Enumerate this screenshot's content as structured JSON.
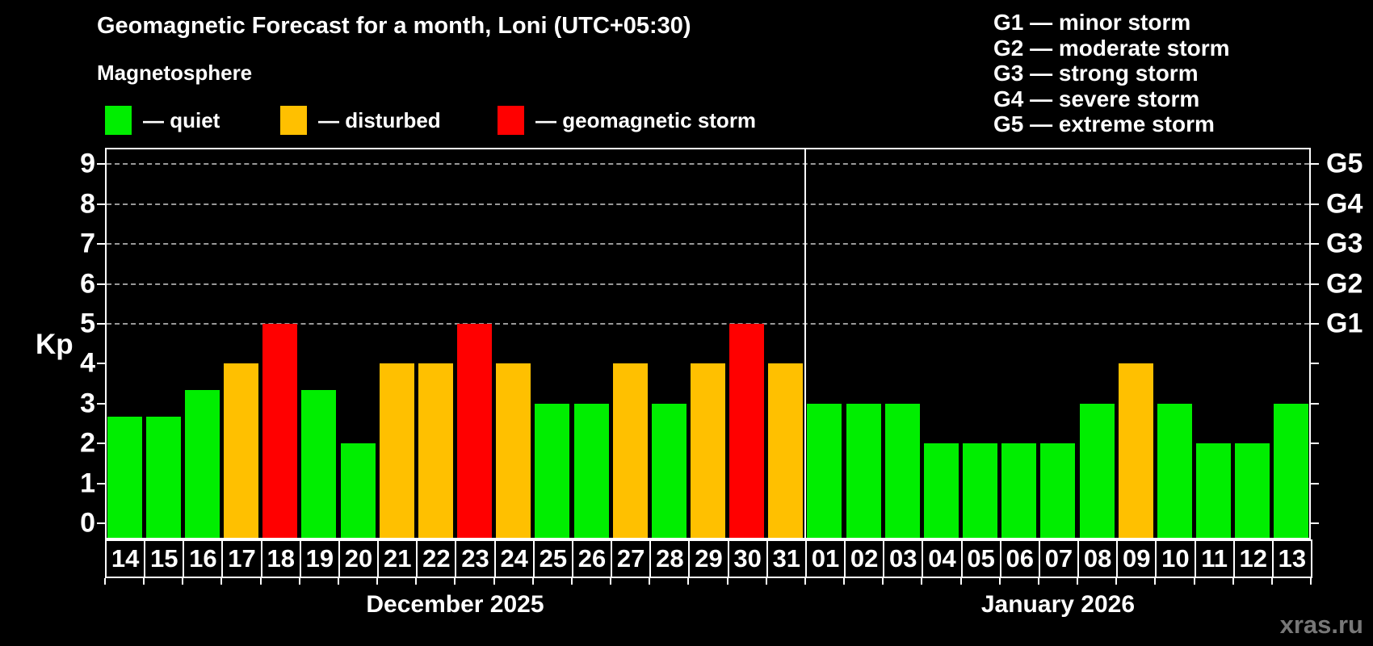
{
  "title": "Geomagnetic Forecast for a month, Loni (UTC+05:30)",
  "subtitle": "Magnetosphere",
  "legend": {
    "items": [
      {
        "name": "quiet",
        "label": "— quiet",
        "color": "#00ee00"
      },
      {
        "name": "disturbed",
        "label": "— disturbed",
        "color": "#ffc000"
      },
      {
        "name": "storm",
        "label": "— geomagnetic storm",
        "color": "#ff0000"
      }
    ]
  },
  "storm_legend": [
    "G1 — minor storm",
    "G2 — moderate storm",
    "G3 — strong storm",
    "G4 — severe storm",
    "G5 — extreme storm"
  ],
  "watermark": "xras.ru",
  "colors": {
    "quiet": "#00ee00",
    "disturbed": "#ffc000",
    "storm": "#ff0000",
    "grid": "#999999",
    "axis": "#ffffff",
    "background": "#000000",
    "watermark": "#777777"
  },
  "chart_data": {
    "type": "bar",
    "title": "Geomagnetic Forecast for a month, Loni (UTC+05:30)",
    "ylabel": "Kp",
    "ylim": [
      0,
      9
    ],
    "y_ticks": [
      0,
      1,
      2,
      3,
      4,
      5,
      6,
      7,
      8,
      9
    ],
    "gridlines": [
      5,
      6,
      7,
      8,
      9
    ],
    "grid": "dashed",
    "legend_position": "top",
    "right_axis_labels": [
      {
        "kp": 5,
        "label": "G1"
      },
      {
        "kp": 6,
        "label": "G2"
      },
      {
        "kp": 7,
        "label": "G3"
      },
      {
        "kp": 8,
        "label": "G4"
      },
      {
        "kp": 9,
        "label": "G5"
      }
    ],
    "categories": [
      "14",
      "15",
      "16",
      "17",
      "18",
      "19",
      "20",
      "21",
      "22",
      "23",
      "24",
      "25",
      "26",
      "27",
      "28",
      "29",
      "30",
      "31",
      "01",
      "02",
      "03",
      "04",
      "05",
      "06",
      "07",
      "08",
      "09",
      "10",
      "11",
      "12",
      "13"
    ],
    "values": [
      2.67,
      2.67,
      3.33,
      4,
      5,
      3.33,
      2,
      4,
      4,
      5,
      4,
      3,
      3,
      4,
      3,
      4,
      5,
      4,
      3,
      3,
      3,
      2,
      2,
      2,
      2,
      3,
      4,
      3,
      2,
      2,
      3
    ],
    "levels": [
      "quiet",
      "quiet",
      "quiet",
      "disturbed",
      "storm",
      "quiet",
      "quiet",
      "disturbed",
      "disturbed",
      "storm",
      "disturbed",
      "quiet",
      "quiet",
      "disturbed",
      "quiet",
      "disturbed",
      "storm",
      "disturbed",
      "quiet",
      "quiet",
      "quiet",
      "quiet",
      "quiet",
      "quiet",
      "quiet",
      "quiet",
      "disturbed",
      "quiet",
      "quiet",
      "quiet",
      "quiet"
    ],
    "months": [
      {
        "label": "December 2025",
        "num_days": 18
      },
      {
        "label": "January 2026",
        "num_days": 13
      }
    ]
  }
}
